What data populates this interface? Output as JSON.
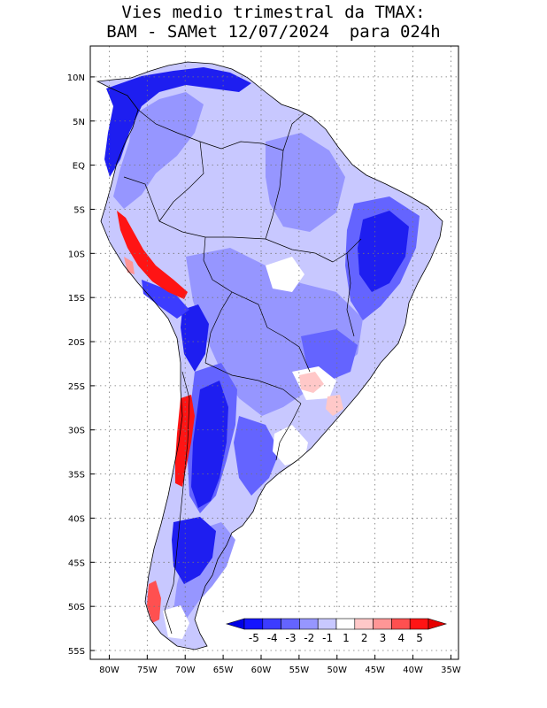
{
  "title": {
    "line1": "Vies medio trimestral da TMAX:",
    "line2": "BAM - SAMet 12/07/2024  para 024h"
  },
  "map": {
    "lat_labels": [
      "10N",
      "5N",
      "EQ",
      "5S",
      "10S",
      "15S",
      "20S",
      "25S",
      "30S",
      "35S",
      "40S",
      "45S",
      "50S",
      "55S"
    ],
    "lat_values": [
      10,
      5,
      0,
      -5,
      -10,
      -15,
      -20,
      -25,
      -30,
      -35,
      -40,
      -45,
      -50,
      -55
    ],
    "lon_labels": [
      "80W",
      "75W",
      "70W",
      "65W",
      "60W",
      "55W",
      "50W",
      "45W",
      "40W",
      "35W"
    ],
    "lon_values": [
      -80,
      -75,
      -70,
      -65,
      -60,
      -55,
      -50,
      -45,
      -40,
      -35
    ],
    "lat_range": [
      -56,
      13.5
    ],
    "lon_range": [
      -82.5,
      -34
    ],
    "grid": "dotted"
  },
  "colorbar": {
    "levels": [
      "-5",
      "-4",
      "-3",
      "-2",
      "-1",
      "1",
      "2",
      "3",
      "4",
      "5"
    ],
    "colors": [
      "#1414ff",
      "#3c3cff",
      "#6464ff",
      "#9696ff",
      "#c8c8ff",
      "#ffffff",
      "#ffc8c8",
      "#ff9696",
      "#ff5050",
      "#ff1414"
    ],
    "below_color": "#0000e6",
    "above_color": "#e60000"
  }
}
